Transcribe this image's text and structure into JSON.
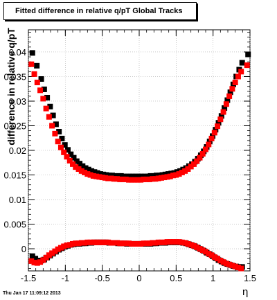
{
  "chart_data": {
    "type": "scatter",
    "title": "Fitted difference in relative q/pT  Global Tracks",
    "xlabel": "η",
    "ylabel": "difference in relative q/pT",
    "xlim": [
      -1.5,
      1.5
    ],
    "ylim": [
      -0.0045,
      0.0445
    ],
    "grid": true,
    "x_ticks": [
      -1.5,
      -1,
      -0.5,
      0,
      0.5,
      1,
      1.5
    ],
    "x_tick_labels": [
      "-1.5",
      "-1",
      "-0.5",
      "0",
      "0.5",
      "1",
      "1.5"
    ],
    "y_ticks": [
      0,
      0.005,
      0.01,
      0.015,
      0.02,
      0.025,
      0.03,
      0.035,
      0.04
    ],
    "y_tick_labels": [
      "0",
      "0.005",
      "0.01",
      "0.015",
      "0.02",
      "0.025",
      "0.03",
      "0.035",
      "0.04"
    ],
    "series": [
      {
        "color": "#000000",
        "points": [
          [
            -1.46,
            0.0398
          ],
          [
            -1.4,
            0.0372
          ],
          [
            -1.34,
            0.0345
          ],
          [
            -1.3,
            0.0324
          ],
          [
            -1.26,
            0.0307
          ],
          [
            -1.22,
            0.0289
          ],
          [
            -1.18,
            0.0271
          ],
          [
            -1.14,
            0.0253
          ],
          [
            -1.1,
            0.0238
          ],
          [
            -1.06,
            0.0224
          ],
          [
            -1.02,
            0.0211
          ],
          [
            -0.98,
            0.0201
          ],
          [
            -0.94,
            0.0192
          ],
          [
            -0.9,
            0.0185
          ],
          [
            -0.86,
            0.0178
          ],
          [
            -0.82,
            0.0173
          ],
          [
            -0.78,
            0.0168
          ],
          [
            -0.74,
            0.0164
          ],
          [
            -0.7,
            0.0161
          ],
          [
            -0.66,
            0.0158
          ],
          [
            -0.62,
            0.0156
          ],
          [
            -0.58,
            0.0154
          ],
          [
            -0.54,
            0.0152
          ],
          [
            -0.5,
            0.0151
          ],
          [
            -0.46,
            0.015
          ],
          [
            -0.42,
            0.0149
          ],
          [
            -0.38,
            0.0149
          ],
          [
            -0.34,
            0.0148
          ],
          [
            -0.3,
            0.0148
          ],
          [
            -0.26,
            0.0148
          ],
          [
            -0.22,
            0.0147
          ],
          [
            -0.18,
            0.0147
          ],
          [
            -0.14,
            0.0147
          ],
          [
            -0.1,
            0.0147
          ],
          [
            -0.06,
            0.0147
          ],
          [
            -0.02,
            0.0147
          ],
          [
            0.02,
            0.0147
          ],
          [
            0.06,
            0.0147
          ],
          [
            0.1,
            0.0147
          ],
          [
            0.14,
            0.0148
          ],
          [
            0.18,
            0.0148
          ],
          [
            0.22,
            0.0149
          ],
          [
            0.26,
            0.0149
          ],
          [
            0.3,
            0.015
          ],
          [
            0.34,
            0.0151
          ],
          [
            0.38,
            0.0152
          ],
          [
            0.42,
            0.0153
          ],
          [
            0.46,
            0.0154
          ],
          [
            0.5,
            0.0156
          ],
          [
            0.54,
            0.0158
          ],
          [
            0.58,
            0.0161
          ],
          [
            0.62,
            0.0164
          ],
          [
            0.66,
            0.0168
          ],
          [
            0.7,
            0.0172
          ],
          [
            0.74,
            0.0177
          ],
          [
            0.78,
            0.0183
          ],
          [
            0.82,
            0.019
          ],
          [
            0.86,
            0.0198
          ],
          [
            0.9,
            0.0207
          ],
          [
            0.94,
            0.0218
          ],
          [
            0.98,
            0.0229
          ],
          [
            1.02,
            0.0242
          ],
          [
            1.06,
            0.0256
          ],
          [
            1.1,
            0.027
          ],
          [
            1.14,
            0.0286
          ],
          [
            1.18,
            0.0302
          ],
          [
            1.22,
            0.0318
          ],
          [
            1.26,
            0.0334
          ],
          [
            1.3,
            0.035
          ],
          [
            1.34,
            0.0364
          ],
          [
            1.38,
            0.0378
          ],
          [
            1.46,
            0.0395
          ],
          [
            -1.46,
            -0.0015
          ],
          [
            -1.42,
            -0.002
          ],
          [
            -1.38,
            -0.0024
          ],
          [
            -1.34,
            -0.0024
          ],
          [
            -1.3,
            -0.0022
          ],
          [
            -1.26,
            -0.0018
          ],
          [
            -1.22,
            -0.0014
          ],
          [
            -1.18,
            -0.001
          ],
          [
            -1.14,
            -0.0006
          ],
          [
            -1.1,
            -0.0002
          ],
          [
            -1.06,
            0.0001
          ],
          [
            -1.02,
            0.0004
          ],
          [
            -0.98,
            0.0006
          ],
          [
            -0.94,
            0.0008
          ],
          [
            -0.9,
            0.0009
          ],
          [
            -0.86,
            0.001
          ],
          [
            -0.82,
            0.001
          ],
          [
            -0.78,
            0.0011
          ],
          [
            -0.74,
            0.0011
          ],
          [
            -0.7,
            0.0012
          ],
          [
            -0.66,
            0.0012
          ],
          [
            -0.62,
            0.0013
          ],
          [
            -0.58,
            0.0013
          ],
          [
            -0.54,
            0.0013
          ],
          [
            -0.5,
            0.0013
          ],
          [
            -0.46,
            0.0013
          ],
          [
            -0.42,
            0.0012
          ],
          [
            -0.38,
            0.0012
          ],
          [
            -0.34,
            0.0012
          ],
          [
            -0.3,
            0.0011
          ],
          [
            -0.26,
            0.0011
          ],
          [
            -0.22,
            0.0011
          ],
          [
            -0.18,
            0.001
          ],
          [
            -0.14,
            0.001
          ],
          [
            -0.1,
            0.001
          ],
          [
            -0.06,
            0.001
          ],
          [
            -0.02,
            0.001
          ],
          [
            0.02,
            0.001
          ],
          [
            0.06,
            0.001
          ],
          [
            0.1,
            0.001
          ],
          [
            0.14,
            0.001
          ],
          [
            0.18,
            0.0011
          ],
          [
            0.22,
            0.0011
          ],
          [
            0.26,
            0.0012
          ],
          [
            0.3,
            0.0012
          ],
          [
            0.34,
            0.0012
          ],
          [
            0.38,
            0.0013
          ],
          [
            0.42,
            0.0013
          ],
          [
            0.46,
            0.0013
          ],
          [
            0.5,
            0.0013
          ],
          [
            0.54,
            0.0013
          ],
          [
            0.58,
            0.0012
          ],
          [
            0.62,
            0.0011
          ],
          [
            0.66,
            0.0009
          ],
          [
            0.7,
            0.0007
          ],
          [
            0.74,
            0.0005
          ],
          [
            0.78,
            0.0002
          ],
          [
            0.82,
            -0.0001
          ],
          [
            0.86,
            -0.0004
          ],
          [
            0.9,
            -0.0008
          ],
          [
            0.94,
            -0.0011
          ],
          [
            0.98,
            -0.0015
          ],
          [
            1.02,
            -0.0019
          ],
          [
            1.06,
            -0.0023
          ],
          [
            1.1,
            -0.0026
          ],
          [
            1.14,
            -0.0029
          ],
          [
            1.18,
            -0.0031
          ],
          [
            1.22,
            -0.0033
          ],
          [
            1.26,
            -0.0035
          ],
          [
            1.3,
            -0.0036
          ],
          [
            1.34,
            -0.0037
          ],
          [
            1.38,
            -0.0037
          ]
        ]
      },
      {
        "color": "#ff0000",
        "points": [
          [
            -1.46,
            0.0375
          ],
          [
            -1.42,
            0.0355
          ],
          [
            -1.38,
            0.0338
          ],
          [
            -1.34,
            0.0322
          ],
          [
            -1.3,
            0.0305
          ],
          [
            -1.26,
            0.0285
          ],
          [
            -1.22,
            0.0268
          ],
          [
            -1.18,
            0.025
          ],
          [
            -1.14,
            0.0234
          ],
          [
            -1.1,
            0.0218
          ],
          [
            -1.06,
            0.0206
          ],
          [
            -1.02,
            0.0196
          ],
          [
            -0.98,
            0.0187
          ],
          [
            -0.94,
            0.0179
          ],
          [
            -0.9,
            0.0172
          ],
          [
            -0.86,
            0.0166
          ],
          [
            -0.82,
            0.0162
          ],
          [
            -0.78,
            0.0158
          ],
          [
            -0.74,
            0.0155
          ],
          [
            -0.7,
            0.0152
          ],
          [
            -0.66,
            0.015
          ],
          [
            -0.62,
            0.0148
          ],
          [
            -0.58,
            0.0147
          ],
          [
            -0.54,
            0.0146
          ],
          [
            -0.5,
            0.0145
          ],
          [
            -0.46,
            0.0144
          ],
          [
            -0.42,
            0.0143
          ],
          [
            -0.38,
            0.0143
          ],
          [
            -0.34,
            0.0142
          ],
          [
            -0.3,
            0.0142
          ],
          [
            -0.26,
            0.0141
          ],
          [
            -0.22,
            0.0141
          ],
          [
            -0.18,
            0.0141
          ],
          [
            -0.14,
            0.014
          ],
          [
            -0.1,
            0.014
          ],
          [
            -0.06,
            0.014
          ],
          [
            -0.02,
            0.014
          ],
          [
            0.02,
            0.014
          ],
          [
            0.06,
            0.0141
          ],
          [
            0.1,
            0.0141
          ],
          [
            0.14,
            0.0141
          ],
          [
            0.18,
            0.0142
          ],
          [
            0.22,
            0.0142
          ],
          [
            0.26,
            0.0143
          ],
          [
            0.3,
            0.0144
          ],
          [
            0.34,
            0.0145
          ],
          [
            0.38,
            0.0146
          ],
          [
            0.42,
            0.0147
          ],
          [
            0.46,
            0.0149
          ],
          [
            0.5,
            0.015
          ],
          [
            0.54,
            0.0152
          ],
          [
            0.58,
            0.0155
          ],
          [
            0.62,
            0.0158
          ],
          [
            0.66,
            0.0162
          ],
          [
            0.7,
            0.0167
          ],
          [
            0.74,
            0.0172
          ],
          [
            0.78,
            0.0178
          ],
          [
            0.82,
            0.0185
          ],
          [
            0.86,
            0.0193
          ],
          [
            0.9,
            0.0202
          ],
          [
            0.94,
            0.0212
          ],
          [
            0.98,
            0.0224
          ],
          [
            1.02,
            0.0236
          ],
          [
            1.06,
            0.0249
          ],
          [
            1.1,
            0.0263
          ],
          [
            1.14,
            0.0278
          ],
          [
            1.18,
            0.0294
          ],
          [
            1.22,
            0.031
          ],
          [
            1.26,
            0.0325
          ],
          [
            1.3,
            0.0338
          ],
          [
            1.34,
            0.035
          ],
          [
            1.38,
            0.036
          ],
          [
            1.46,
            0.0373
          ],
          [
            -1.46,
            -0.0025
          ],
          [
            -1.42,
            -0.0028
          ],
          [
            -1.38,
            -0.0029
          ],
          [
            -1.34,
            -0.0027
          ],
          [
            -1.3,
            -0.0023
          ],
          [
            -1.26,
            -0.0018
          ],
          [
            -1.22,
            -0.0013
          ],
          [
            -1.18,
            -0.0009
          ],
          [
            -1.14,
            -0.0005
          ],
          [
            -1.1,
            -0.0001
          ],
          [
            -1.06,
            0.0002
          ],
          [
            -1.02,
            0.0005
          ],
          [
            -0.98,
            0.0007
          ],
          [
            -0.94,
            0.0008
          ],
          [
            -0.9,
            0.001
          ],
          [
            -0.86,
            0.0011
          ],
          [
            -0.82,
            0.0011
          ],
          [
            -0.78,
            0.0012
          ],
          [
            -0.74,
            0.0012
          ],
          [
            -0.7,
            0.0013
          ],
          [
            -0.66,
            0.0013
          ],
          [
            -0.62,
            0.0013
          ],
          [
            -0.58,
            0.0013
          ],
          [
            -0.54,
            0.0013
          ],
          [
            -0.5,
            0.0013
          ],
          [
            -0.46,
            0.0013
          ],
          [
            -0.42,
            0.0013
          ],
          [
            -0.38,
            0.0012
          ],
          [
            -0.34,
            0.0012
          ],
          [
            -0.3,
            0.0012
          ],
          [
            -0.26,
            0.0011
          ],
          [
            -0.22,
            0.0011
          ],
          [
            -0.18,
            0.0011
          ],
          [
            -0.14,
            0.0011
          ],
          [
            -0.1,
            0.001
          ],
          [
            -0.06,
            0.001
          ],
          [
            -0.02,
            0.001
          ],
          [
            0.02,
            0.001
          ],
          [
            0.06,
            0.0011
          ],
          [
            0.1,
            0.0011
          ],
          [
            0.14,
            0.0011
          ],
          [
            0.18,
            0.0012
          ],
          [
            0.22,
            0.0012
          ],
          [
            0.26,
            0.0013
          ],
          [
            0.3,
            0.0013
          ],
          [
            0.34,
            0.0013
          ],
          [
            0.38,
            0.0014
          ],
          [
            0.42,
            0.0014
          ],
          [
            0.46,
            0.0014
          ],
          [
            0.5,
            0.0014
          ],
          [
            0.54,
            0.0014
          ],
          [
            0.58,
            0.0013
          ],
          [
            0.62,
            0.0012
          ],
          [
            0.66,
            0.001
          ],
          [
            0.7,
            0.0008
          ],
          [
            0.74,
            0.0006
          ],
          [
            0.78,
            0.0003
          ],
          [
            0.82,
            0.0
          ],
          [
            0.86,
            -0.0003
          ],
          [
            0.9,
            -0.0006
          ],
          [
            0.94,
            -0.001
          ],
          [
            0.98,
            -0.0013
          ],
          [
            1.02,
            -0.0017
          ],
          [
            1.06,
            -0.002
          ],
          [
            1.1,
            -0.0024
          ],
          [
            1.14,
            -0.0027
          ],
          [
            1.18,
            -0.003
          ],
          [
            1.22,
            -0.0032
          ],
          [
            1.26,
            -0.0034
          ],
          [
            1.3,
            -0.0036
          ],
          [
            1.34,
            -0.0038
          ],
          [
            1.38,
            -0.004
          ]
        ]
      }
    ]
  },
  "footer": {
    "timestamp": "Thu Jan 17 11:09:12 2013"
  }
}
